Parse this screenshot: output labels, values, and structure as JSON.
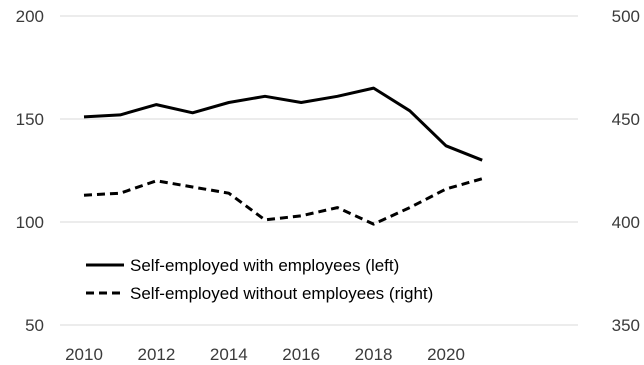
{
  "chart_data": {
    "type": "line",
    "title": "",
    "xlabel": "",
    "ylabel": "",
    "x": [
      2010,
      2011,
      2012,
      2013,
      2014,
      2015,
      2016,
      2017,
      2018,
      2019,
      2020,
      2021
    ],
    "x_tick_labels": [
      "2010",
      "2012",
      "2014",
      "2016",
      "2018",
      "2020"
    ],
    "y_left": {
      "range": [
        50,
        200
      ],
      "ticks": [
        "50",
        "100",
        "150",
        "200"
      ]
    },
    "y_right": {
      "range": [
        350,
        500
      ],
      "ticks": [
        "350",
        "400",
        "450",
        "500"
      ]
    },
    "grid": true,
    "legend_position": "bottom-left",
    "series": [
      {
        "name": "Self-employed with employees (left)",
        "axis": "left",
        "style": "solid",
        "color": "#000000",
        "values": [
          151,
          152,
          157,
          153,
          158,
          161,
          158,
          161,
          165,
          154,
          137,
          130
        ]
      },
      {
        "name": "Self-employed without employees (right)",
        "axis": "right",
        "style": "dashed",
        "color": "#000000",
        "values": [
          413,
          414,
          420,
          417,
          414,
          401,
          403,
          407,
          399,
          407,
          416,
          421
        ]
      }
    ]
  }
}
